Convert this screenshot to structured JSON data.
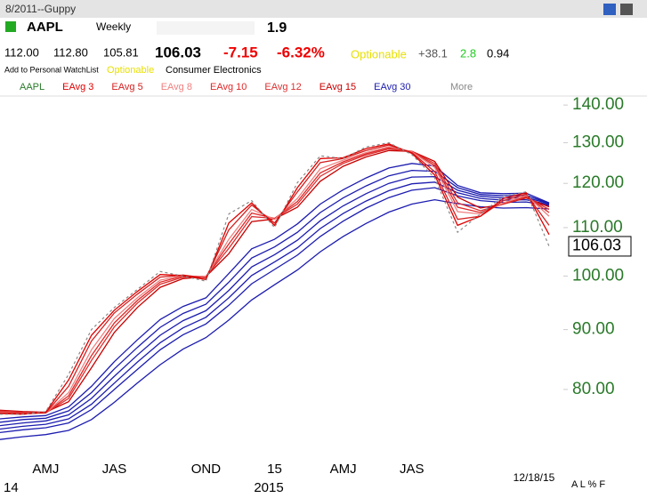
{
  "header": {
    "layout_name": "8/2011--Guppy",
    "symbol": "AAPL",
    "period": "Weekly",
    "score": "1.9",
    "open": "112.00",
    "high": "112.80",
    "low": "105.81",
    "last": "106.03",
    "change": "-7.15",
    "change_pct": "-6.32%",
    "optionable": "Optionable",
    "stat1": "+38.1",
    "stat2": "2.8",
    "stat3": "0.94",
    "watchlist": "Add to Personal WatchList",
    "optionable2": "Optionable",
    "industry": "Consumer Electronics",
    "more": "More"
  },
  "chart_data": {
    "type": "line",
    "log_scale": true,
    "categories": [
      null,
      null,
      "AMJ",
      null,
      null,
      "JAS",
      null,
      null,
      null,
      "OND",
      null,
      null,
      "15",
      null,
      null,
      "AMJ",
      null,
      null,
      "JAS",
      null,
      null,
      null,
      null,
      null,
      null
    ],
    "year_labels": [
      "14",
      "2015"
    ],
    "date_label": "12/18/15",
    "scale_buttons": "A L % F",
    "ylim": [
      69.3,
      142.5
    ],
    "yticks": [
      {
        "value": 80,
        "label": "80.00"
      },
      {
        "value": 90,
        "label": "90.00"
      },
      {
        "value": 100,
        "label": "100.00"
      },
      {
        "value": 110,
        "label": "110.00"
      },
      {
        "value": 120,
        "label": "120.00"
      },
      {
        "value": 130,
        "label": "130.00"
      },
      {
        "value": 140,
        "label": "140.00"
      }
    ],
    "series": [
      {
        "name": "AAPL",
        "color": "#888888",
        "dashed": true,
        "values": [
          76.2,
          76.2,
          76.6,
          82.4,
          90.0,
          94.0,
          97.4,
          100.9,
          100,
          99,
          113,
          116,
          110,
          120.2,
          126.7,
          126,
          128.9,
          130,
          127,
          121.3,
          109,
          113,
          117,
          118,
          106.03
        ]
      },
      {
        "name": "EAvg 3",
        "color": "#e00000",
        "values": [
          76.3,
          76.2,
          76.5,
          81.5,
          89.0,
          93.5,
          97.0,
          100.3,
          100.1,
          99.3,
          111,
          115.5,
          110.5,
          119,
          126,
          126.2,
          128.5,
          129.7,
          127.3,
          122,
          110.5,
          112.5,
          116.5,
          117.8,
          108.5
        ]
      },
      {
        "name": "EAvg 5",
        "color": "#d42020",
        "values": [
          76.4,
          76.3,
          76.4,
          80.5,
          88.0,
          93.0,
          96.5,
          99.8,
          100.2,
          99.6,
          109.5,
          115,
          111,
          118,
          125,
          126,
          128,
          129.4,
          127.5,
          122.8,
          111.8,
          112.5,
          116,
          117.5,
          110.5
        ]
      },
      {
        "name": "EAvg 8",
        "color": "#f08080",
        "values": [
          76.5,
          76.3,
          76.4,
          79.5,
          86.5,
          92.0,
          95.8,
          99.2,
          100.1,
          99.8,
          107.5,
          114,
          111.8,
          116.5,
          123.5,
          125.6,
          127.5,
          129,
          127.7,
          123.8,
          113.5,
          113,
          115.5,
          117.2,
          112.5
        ]
      },
      {
        "name": "EAvg 10",
        "color": "#e02828",
        "values": [
          76.6,
          76.4,
          76.4,
          79,
          85.5,
          91.2,
          95.3,
          98.8,
          100,
          99.9,
          106.5,
          113.2,
          112,
          115.8,
          122.5,
          125.2,
          127.2,
          128.7,
          127.8,
          124.3,
          114.5,
          113.3,
          115.3,
          117,
          113.3
        ]
      },
      {
        "name": "EAvg 12",
        "color": "#dc3030",
        "values": [
          76.7,
          76.5,
          76.4,
          78.6,
          84.7,
          90.5,
          94.8,
          98.4,
          99.8,
          99.9,
          105.6,
          112.4,
          112,
          115.2,
          121.7,
          124.8,
          126.9,
          128.4,
          127.8,
          124.8,
          115.5,
          113.7,
          115.2,
          116.8,
          114
        ]
      },
      {
        "name": "EAvg 15",
        "color": "#c80000",
        "values": [
          76.8,
          76.6,
          76.5,
          78.1,
          83.5,
          89.5,
          94,
          97.8,
          99.5,
          99.9,
          104.5,
          111.3,
          111.9,
          114.5,
          120.5,
          124.1,
          126.4,
          128,
          127.8,
          125.3,
          116.8,
          114.3,
          115.2,
          116.6,
          114.6
        ]
      },
      {
        "name": "EAvg 30",
        "color": "#1c1cb0",
        "values": [
          75.5,
          75.8,
          76.0,
          77.3,
          80.5,
          84.5,
          88.2,
          91.8,
          94.2,
          95.8,
          100.5,
          105.5,
          107.5,
          110.8,
          115.2,
          118.5,
          121.3,
          123.7,
          124.8,
          124.2,
          119.5,
          117.8,
          117.6,
          117.7,
          115.5
        ]
      },
      {
        "color": "#1c1cb0",
        "values": [
          75.0,
          75.4,
          75.6,
          76.7,
          79.5,
          83.3,
          86.9,
          90.4,
          92.9,
          94.6,
          98.8,
          103.6,
          105.9,
          109.0,
          113.3,
          116.6,
          119.4,
          121.8,
          123.1,
          122.9,
          119.0,
          117.4,
          117.1,
          117.2,
          115.4
        ]
      },
      {
        "color": "#1c1cb0",
        "values": [
          74.5,
          74.9,
          75.2,
          76.1,
          78.6,
          82.1,
          85.6,
          89.0,
          91.6,
          93.4,
          97.2,
          101.8,
          104.3,
          107.3,
          111.5,
          114.8,
          117.6,
          120.0,
          121.5,
          121.6,
          118.4,
          117.0,
          116.6,
          116.7,
          115.3
        ]
      },
      {
        "color": "#1c1cb0",
        "values": [
          74.0,
          74.4,
          74.7,
          75.5,
          77.7,
          81.0,
          84.4,
          87.7,
          90.3,
          92.2,
          95.8,
          100.1,
          102.8,
          105.7,
          109.8,
          113.1,
          115.9,
          118.3,
          119.9,
          120.3,
          117.8,
          116.5,
          116.1,
          116.2,
          115.1
        ]
      },
      {
        "color": "#1c1cb0",
        "values": [
          73.5,
          73.9,
          74.2,
          74.9,
          76.9,
          80.0,
          83.2,
          86.5,
          89.1,
          91.0,
          94.4,
          98.5,
          101.3,
          104.2,
          108.1,
          111.4,
          114.3,
          116.7,
          118.4,
          119.0,
          117.1,
          116.0,
          115.6,
          115.7,
          114.9
        ]
      },
      {
        "color": "#1c1cb0",
        "values": [
          72.5,
          72.9,
          73.2,
          73.8,
          75.4,
          78.0,
          81.0,
          84.0,
          86.6,
          88.6,
          91.7,
          95.4,
          98.3,
          101.2,
          104.9,
          108.1,
          110.9,
          113.4,
          115.2,
          116.2,
          115.3,
          114.6,
          114.3,
          114.4,
          114.1
        ]
      }
    ],
    "y_label_color": "#2a7a2a"
  }
}
